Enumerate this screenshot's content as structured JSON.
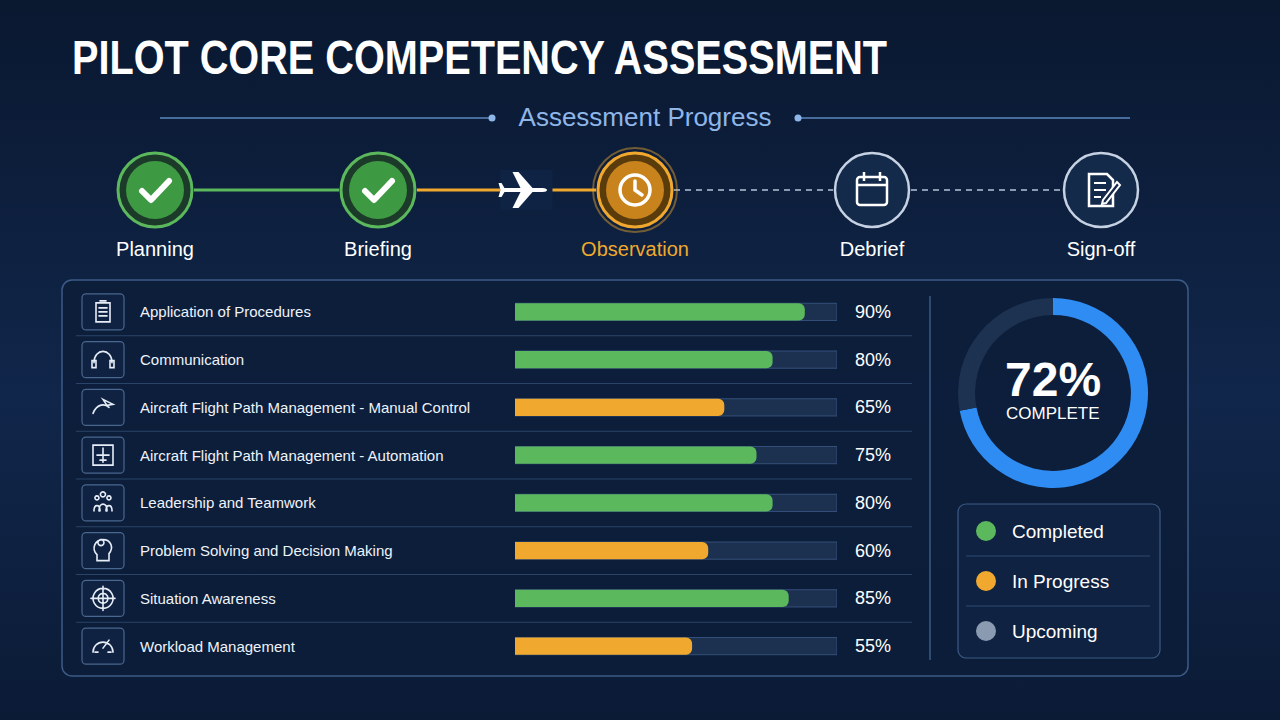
{
  "title": "PILOT CORE COMPETENCY ASSESSMENT",
  "progress": {
    "title": "Assessment Progress",
    "stages": [
      {
        "label": "Planning",
        "status": "Completed"
      },
      {
        "label": "Briefing",
        "status": "Completed"
      },
      {
        "label": "Observation",
        "status": "In Progress"
      },
      {
        "label": "Debrief",
        "status": "Upcoming"
      },
      {
        "label": "Sign-off",
        "status": "Upcoming"
      }
    ]
  },
  "chart_data": [
    {
      "type": "bar",
      "orientation": "horizontal",
      "categories": [
        "Application of Procedures",
        "Communication",
        "Aircraft Flight Path Management - Manual Control",
        "Aircraft Flight Path Management - Automation",
        "Leadership and Teamwork",
        "Problem Solving and Decision Making",
        "Situation Awareness",
        "Workload Management"
      ],
      "values": [
        90,
        80,
        65,
        75,
        80,
        60,
        85,
        55
      ],
      "value_labels": [
        "90%",
        "80%",
        "65%",
        "75%",
        "80%",
        "60%",
        "85%",
        "55%"
      ],
      "data_labels": true,
      "colors": [
        "#5cb85c",
        "#5cb85c",
        "#f0a92e",
        "#5cb85c",
        "#5cb85c",
        "#f0a92e",
        "#5cb85c",
        "#f0a92e"
      ],
      "xlim": [
        0,
        100
      ],
      "tick_labels": false
    },
    {
      "type": "pie",
      "values": [
        72
      ],
      "value_labels": [
        "72%"
      ],
      "label": "COMPLETE",
      "range": [
        0,
        100
      ],
      "color": "#2f8cf2"
    }
  ],
  "legend": [
    {
      "label": "Completed",
      "color": "#5cb85c"
    },
    {
      "label": "In Progress",
      "color": "#f0a92e"
    },
    {
      "label": "Upcoming",
      "color": "#8a9ab0"
    }
  ]
}
